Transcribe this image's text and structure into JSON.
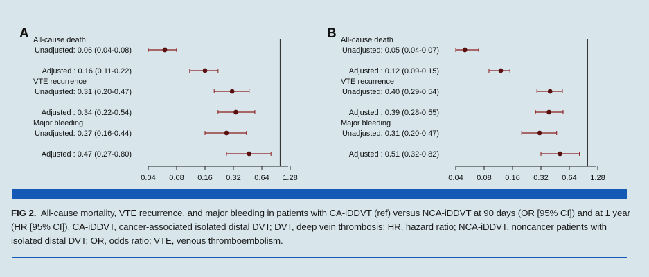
{
  "chart_data": [
    {
      "type": "forest",
      "panel_label": "A",
      "scale": "log2",
      "xticks": [
        "0.04",
        "0.08",
        "0.16",
        "0.32",
        "0.64",
        "1.28"
      ],
      "xtick_values": [
        0.04,
        0.08,
        0.16,
        0.32,
        0.64,
        1.28
      ],
      "xlim": [
        0.04,
        1.28
      ],
      "reference_line": 1.0,
      "rows": [
        {
          "group": "All-cause death",
          "label": "Unadjusted: 0.06 (0.04-0.08)",
          "estimate": 0.06,
          "lower": 0.04,
          "upper": 0.08
        },
        {
          "group": "",
          "label": "Adjusted : 0.16 (0.11-0.22)",
          "estimate": 0.16,
          "lower": 0.11,
          "upper": 0.22
        },
        {
          "group": "VTE recurrence",
          "label": "Unadjusted: 0.31 (0.20-0.47)",
          "estimate": 0.31,
          "lower": 0.2,
          "upper": 0.47
        },
        {
          "group": "",
          "label": "Adjusted : 0.34 (0.22-0.54)",
          "estimate": 0.34,
          "lower": 0.22,
          "upper": 0.54
        },
        {
          "group": "Major bleeding",
          "label": "Unadjusted: 0.27 (0.16-0.44)",
          "estimate": 0.27,
          "lower": 0.16,
          "upper": 0.44
        },
        {
          "group": "",
          "label": "Adjusted : 0.47 (0.27-0.80)",
          "estimate": 0.47,
          "lower": 0.27,
          "upper": 0.8
        }
      ]
    },
    {
      "type": "forest",
      "panel_label": "B",
      "scale": "log2",
      "xticks": [
        "0.04",
        "0.08",
        "0.16",
        "0.32",
        "0.64",
        "1.28"
      ],
      "xtick_values": [
        0.04,
        0.08,
        0.16,
        0.32,
        0.64,
        1.28
      ],
      "xlim": [
        0.04,
        1.28
      ],
      "reference_line": 1.0,
      "rows": [
        {
          "group": "All-cause death",
          "label": "Unadjusted: 0.05 (0.04-0.07)",
          "estimate": 0.05,
          "lower": 0.04,
          "upper": 0.07
        },
        {
          "group": "",
          "label": "Adjusted : 0.12 (0.09-0.15)",
          "estimate": 0.12,
          "lower": 0.09,
          "upper": 0.15
        },
        {
          "group": "VTE recurrence",
          "label": "Unadjusted: 0.40 (0.29-0.54)",
          "estimate": 0.4,
          "lower": 0.29,
          "upper": 0.54
        },
        {
          "group": "",
          "label": "Adjusted : 0.39 (0.28-0.55)",
          "estimate": 0.39,
          "lower": 0.28,
          "upper": 0.55
        },
        {
          "group": "Major bleeding",
          "label": "Unadjusted: 0.31 (0.20-0.47)",
          "estimate": 0.31,
          "lower": 0.2,
          "upper": 0.47
        },
        {
          "group": "",
          "label": "Adjusted : 0.51 (0.32-0.82)",
          "estimate": 0.51,
          "lower": 0.32,
          "upper": 0.82
        }
      ]
    }
  ],
  "colors": {
    "background": "#d8e6ec",
    "accent": "#1459b4",
    "ci_line": "#8b1a1a",
    "point": "#5a0f0f"
  },
  "caption": {
    "label": "FIG 2.",
    "text": "All-cause mortality, VTE recurrence, and major bleeding in patients with CA-iDDVT (ref) versus NCA-iDDVT at 90 days (OR [95% CI]) and at 1 year (HR [95% CI]). CA-iDDVT, cancer-associated isolated distal DVT; DVT, deep vein thrombosis; HR, hazard ratio; NCA-iDDVT, noncancer patients with isolated distal DVT; OR, odds ratio; VTE, venous thromboembolism."
  }
}
